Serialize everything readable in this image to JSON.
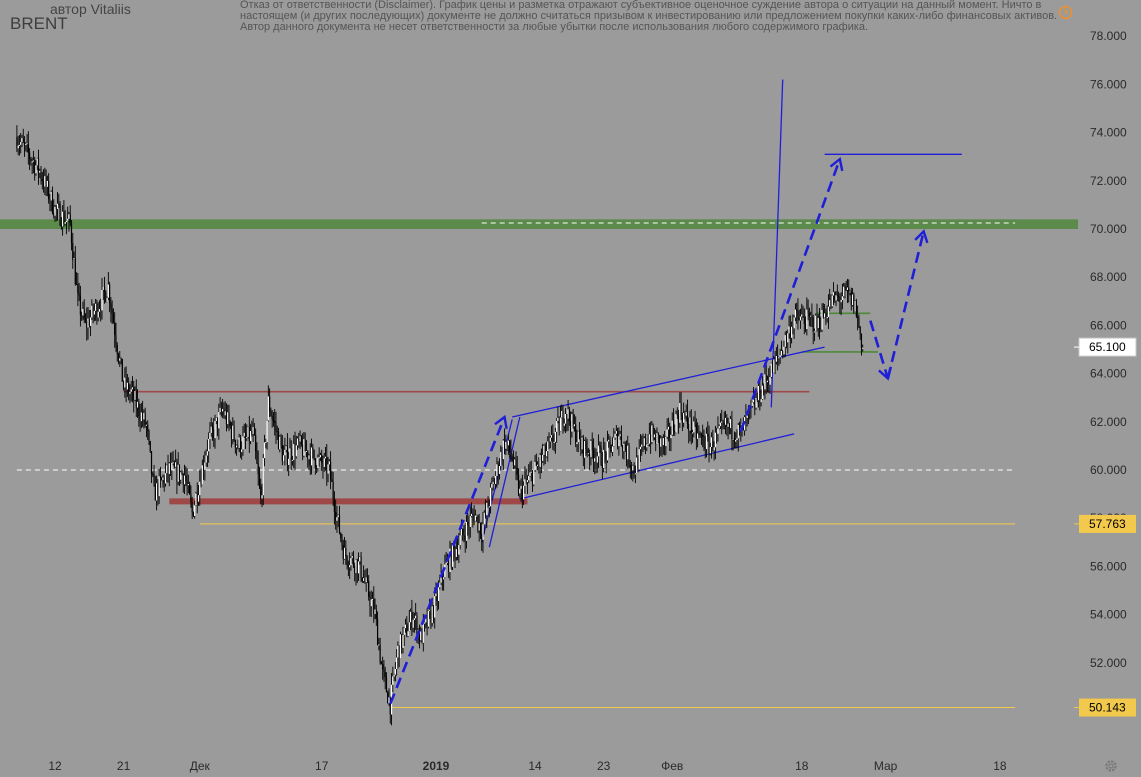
{
  "header": {
    "author": "автор Vitaliis",
    "symbol": "BRENT",
    "disclaimer": "Отказ от ответственности (Disclaimer). График цены и разметка отражают субъективное оценочное суждение автора о ситуации на данный момент. Ничто в настоящем (и других последующих) документе не должно считаться призывом к инвестированию или предложением покупки каких-либо финансовых активов.\nАвтор данного документа не несет ответственности за любые убытки после использования любого содержимого графика."
  },
  "colors": {
    "background": "#9b9b9b",
    "candle_up": "#ffffff",
    "candle_down": "#000000",
    "green_zone": "#5b8a4a",
    "red_level": "#9e4848",
    "blue_drawing": "#1f1fd8",
    "yellow_level": "#f2c94c",
    "axis_text": "#2a2a2a"
  },
  "icons": {
    "clock": "clock-icon",
    "settings": "gear-icon"
  },
  "chart_data": {
    "type": "candlestick",
    "symbol": "BRENT",
    "ylim": [
      49.5,
      79.0
    ],
    "y_ticks": [
      "50.000",
      "52.000",
      "54.000",
      "56.000",
      "58.000",
      "60.000",
      "62.000",
      "64.000",
      "66.000",
      "68.000",
      "70.000",
      "72.000",
      "74.000",
      "76.000",
      "78.000"
    ],
    "x_ticks": [
      {
        "label": "12",
        "day": 0
      },
      {
        "label": "21",
        "day": 9
      },
      {
        "label": "Дек",
        "day": 19
      },
      {
        "label": "17",
        "day": 35
      },
      {
        "label": "2019",
        "day": 50,
        "bold": true
      },
      {
        "label": "14",
        "day": 63
      },
      {
        "label": "23",
        "day": 72
      },
      {
        "label": "Фев",
        "day": 81
      },
      {
        "label": "18",
        "day": 98
      },
      {
        "label": "Мар",
        "day": 109
      },
      {
        "label": "18",
        "day": 124
      }
    ],
    "price_labels": [
      {
        "text": "65.100",
        "value": 65.1,
        "style": "current"
      },
      {
        "text": "57.763",
        "value": 57.763,
        "style": "yellow"
      },
      {
        "text": "50.143",
        "value": 50.143,
        "style": "yellow"
      }
    ],
    "path_anchors": [
      {
        "day": -5,
        "price": 73.8
      },
      {
        "day": -2,
        "price": 72.4
      },
      {
        "day": 0,
        "price": 70.8
      },
      {
        "day": 2,
        "price": 70.2
      },
      {
        "day": 3,
        "price": 67.0
      },
      {
        "day": 4,
        "price": 66.0
      },
      {
        "day": 6,
        "price": 67.0
      },
      {
        "day": 7,
        "price": 67.6
      },
      {
        "day": 8,
        "price": 65.5
      },
      {
        "day": 9,
        "price": 63.5
      },
      {
        "day": 10,
        "price": 63.2
      },
      {
        "day": 12,
        "price": 61.8
      },
      {
        "day": 13,
        "price": 59.0
      },
      {
        "day": 15,
        "price": 60.0
      },
      {
        "day": 17,
        "price": 59.8
      },
      {
        "day": 18,
        "price": 58.2
      },
      {
        "day": 20,
        "price": 61.0
      },
      {
        "day": 22,
        "price": 62.5
      },
      {
        "day": 24,
        "price": 61.0
      },
      {
        "day": 26,
        "price": 61.5
      },
      {
        "day": 27,
        "price": 58.7
      },
      {
        "day": 28,
        "price": 62.8
      },
      {
        "day": 30,
        "price": 60.5
      },
      {
        "day": 32,
        "price": 61.0
      },
      {
        "day": 34,
        "price": 60.5
      },
      {
        "day": 36,
        "price": 60.0
      },
      {
        "day": 37,
        "price": 58.0
      },
      {
        "day": 38,
        "price": 56.5
      },
      {
        "day": 40,
        "price": 56.0
      },
      {
        "day": 42,
        "price": 54.0
      },
      {
        "day": 43,
        "price": 51.5
      },
      {
        "day": 44,
        "price": 50.3
      },
      {
        "day": 45,
        "price": 52.5
      },
      {
        "day": 47,
        "price": 54.0
      },
      {
        "day": 48,
        "price": 53.0
      },
      {
        "day": 50,
        "price": 54.5
      },
      {
        "day": 51,
        "price": 55.8
      },
      {
        "day": 53,
        "price": 57.0
      },
      {
        "day": 55,
        "price": 58.2
      },
      {
        "day": 56,
        "price": 57.5
      },
      {
        "day": 59,
        "price": 61.2
      },
      {
        "day": 60,
        "price": 60.5
      },
      {
        "day": 61,
        "price": 59.0
      },
      {
        "day": 63,
        "price": 60.0
      },
      {
        "day": 65,
        "price": 61.0
      },
      {
        "day": 67,
        "price": 62.5
      },
      {
        "day": 69,
        "price": 61.0
      },
      {
        "day": 72,
        "price": 60.5
      },
      {
        "day": 74,
        "price": 61.5
      },
      {
        "day": 76,
        "price": 60.0
      },
      {
        "day": 78,
        "price": 61.5
      },
      {
        "day": 80,
        "price": 61.0
      },
      {
        "day": 82,
        "price": 62.5
      },
      {
        "day": 84,
        "price": 61.5
      },
      {
        "day": 86,
        "price": 61.0
      },
      {
        "day": 88,
        "price": 61.8
      },
      {
        "day": 90,
        "price": 61.5
      },
      {
        "day": 91,
        "price": 62.2
      },
      {
        "day": 93,
        "price": 63.5
      },
      {
        "day": 95,
        "price": 64.7
      },
      {
        "day": 97,
        "price": 66.3
      },
      {
        "day": 99,
        "price": 66.2
      },
      {
        "day": 100,
        "price": 66.0
      },
      {
        "day": 102,
        "price": 67.0
      },
      {
        "day": 104,
        "price": 67.3
      },
      {
        "day": 105,
        "price": 66.8
      },
      {
        "day": 106,
        "price": 65.1
      }
    ],
    "annotations": [
      {
        "name": "green-zone-70",
        "kind": "zone",
        "y1": 70.0,
        "y2": 70.4
      },
      {
        "name": "resistance-63",
        "kind": "hline",
        "y": 63.25,
        "from_day": 9,
        "to_day": 99
      },
      {
        "name": "support-587",
        "kind": "hline",
        "y": 58.7,
        "from_day": 15,
        "to_day": 62
      },
      {
        "name": "level-57763",
        "kind": "hline",
        "y": 57.763,
        "from_day": 19,
        "to_day": 126
      },
      {
        "name": "level-50143",
        "kind": "hline",
        "y": 50.143,
        "from_day": 44,
        "to_day": 126
      },
      {
        "name": "level-60-dashed",
        "kind": "dashed",
        "y": 60.0,
        "from_day": -5,
        "to_day": 126
      },
      {
        "name": "level-70-dashed",
        "kind": "dashed",
        "y": 70.25,
        "from_day": 56,
        "to_day": 126
      },
      {
        "name": "green-upper-box",
        "kind": "hline",
        "y": 66.5,
        "from_day": 100,
        "to_day": 107
      },
      {
        "name": "green-lower-box",
        "kind": "hline",
        "y": 64.9,
        "from_day": 98,
        "to_day": 108
      },
      {
        "name": "channel-upper",
        "kind": "line",
        "points": [
          [
            60,
            62.2
          ],
          [
            101,
            65.1
          ]
        ]
      },
      {
        "name": "channel-lower",
        "kind": "line",
        "points": [
          [
            61,
            58.8
          ],
          [
            97,
            61.5
          ]
        ]
      },
      {
        "name": "spike-line",
        "kind": "line",
        "points": [
          [
            94,
            62.6
          ],
          [
            95.5,
            76.2
          ]
        ]
      },
      {
        "name": "target-73",
        "kind": "line",
        "points": [
          [
            101,
            73.1
          ],
          [
            119,
            73.1
          ]
        ]
      },
      {
        "name": "flag-pole-a",
        "kind": "line",
        "points": [
          [
            56,
            57.0
          ],
          [
            60,
            62.1
          ]
        ]
      },
      {
        "name": "flag-pole-b",
        "kind": "line",
        "points": [
          [
            57,
            56.8
          ],
          [
            61,
            62.2
          ]
        ]
      }
    ],
    "projections": [
      {
        "name": "proj-rally-2018",
        "points": [
          [
            44,
            50.3
          ],
          [
            59,
            62.2
          ]
        ]
      },
      {
        "name": "proj-to-73",
        "points": [
          [
            90,
            61.6
          ],
          [
            103,
            72.9
          ]
        ]
      },
      {
        "name": "proj-pullback",
        "points": [
          [
            107,
            66.2
          ],
          [
            109.3,
            63.8
          ]
        ]
      },
      {
        "name": "proj-to-70",
        "points": [
          [
            109.3,
            63.8
          ],
          [
            114,
            69.9
          ]
        ]
      }
    ]
  }
}
